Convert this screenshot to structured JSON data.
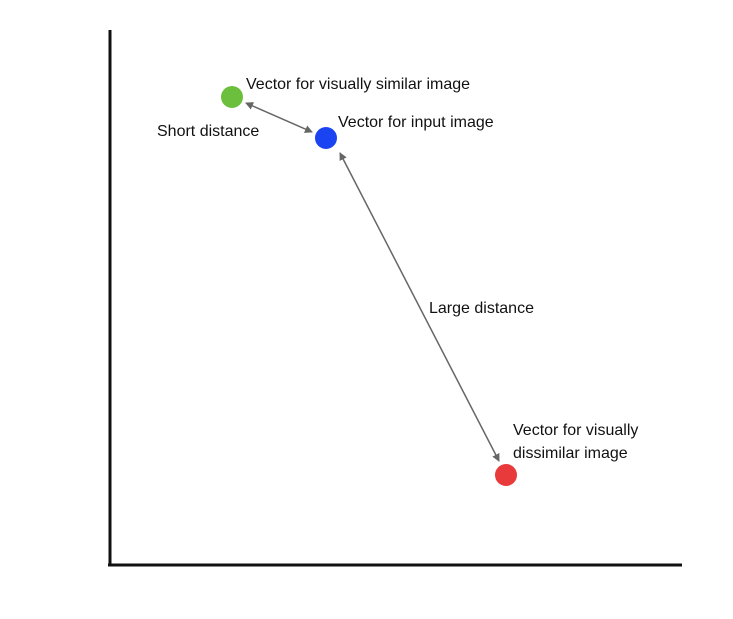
{
  "points": {
    "similar": {
      "label": "Vector for visually similar image",
      "color": "#6cbf3c"
    },
    "input": {
      "label": "Vector for input image",
      "color": "#1a44f2"
    },
    "dissimilar": {
      "label_lines": [
        "Vector for visually",
        "dissimilar image"
      ],
      "color": "#e83a3a"
    }
  },
  "distances": {
    "short": {
      "label": "Short distance"
    },
    "large": {
      "label": "Large distance"
    }
  },
  "colors": {
    "axis": "#111111",
    "arrow": "#666666"
  }
}
